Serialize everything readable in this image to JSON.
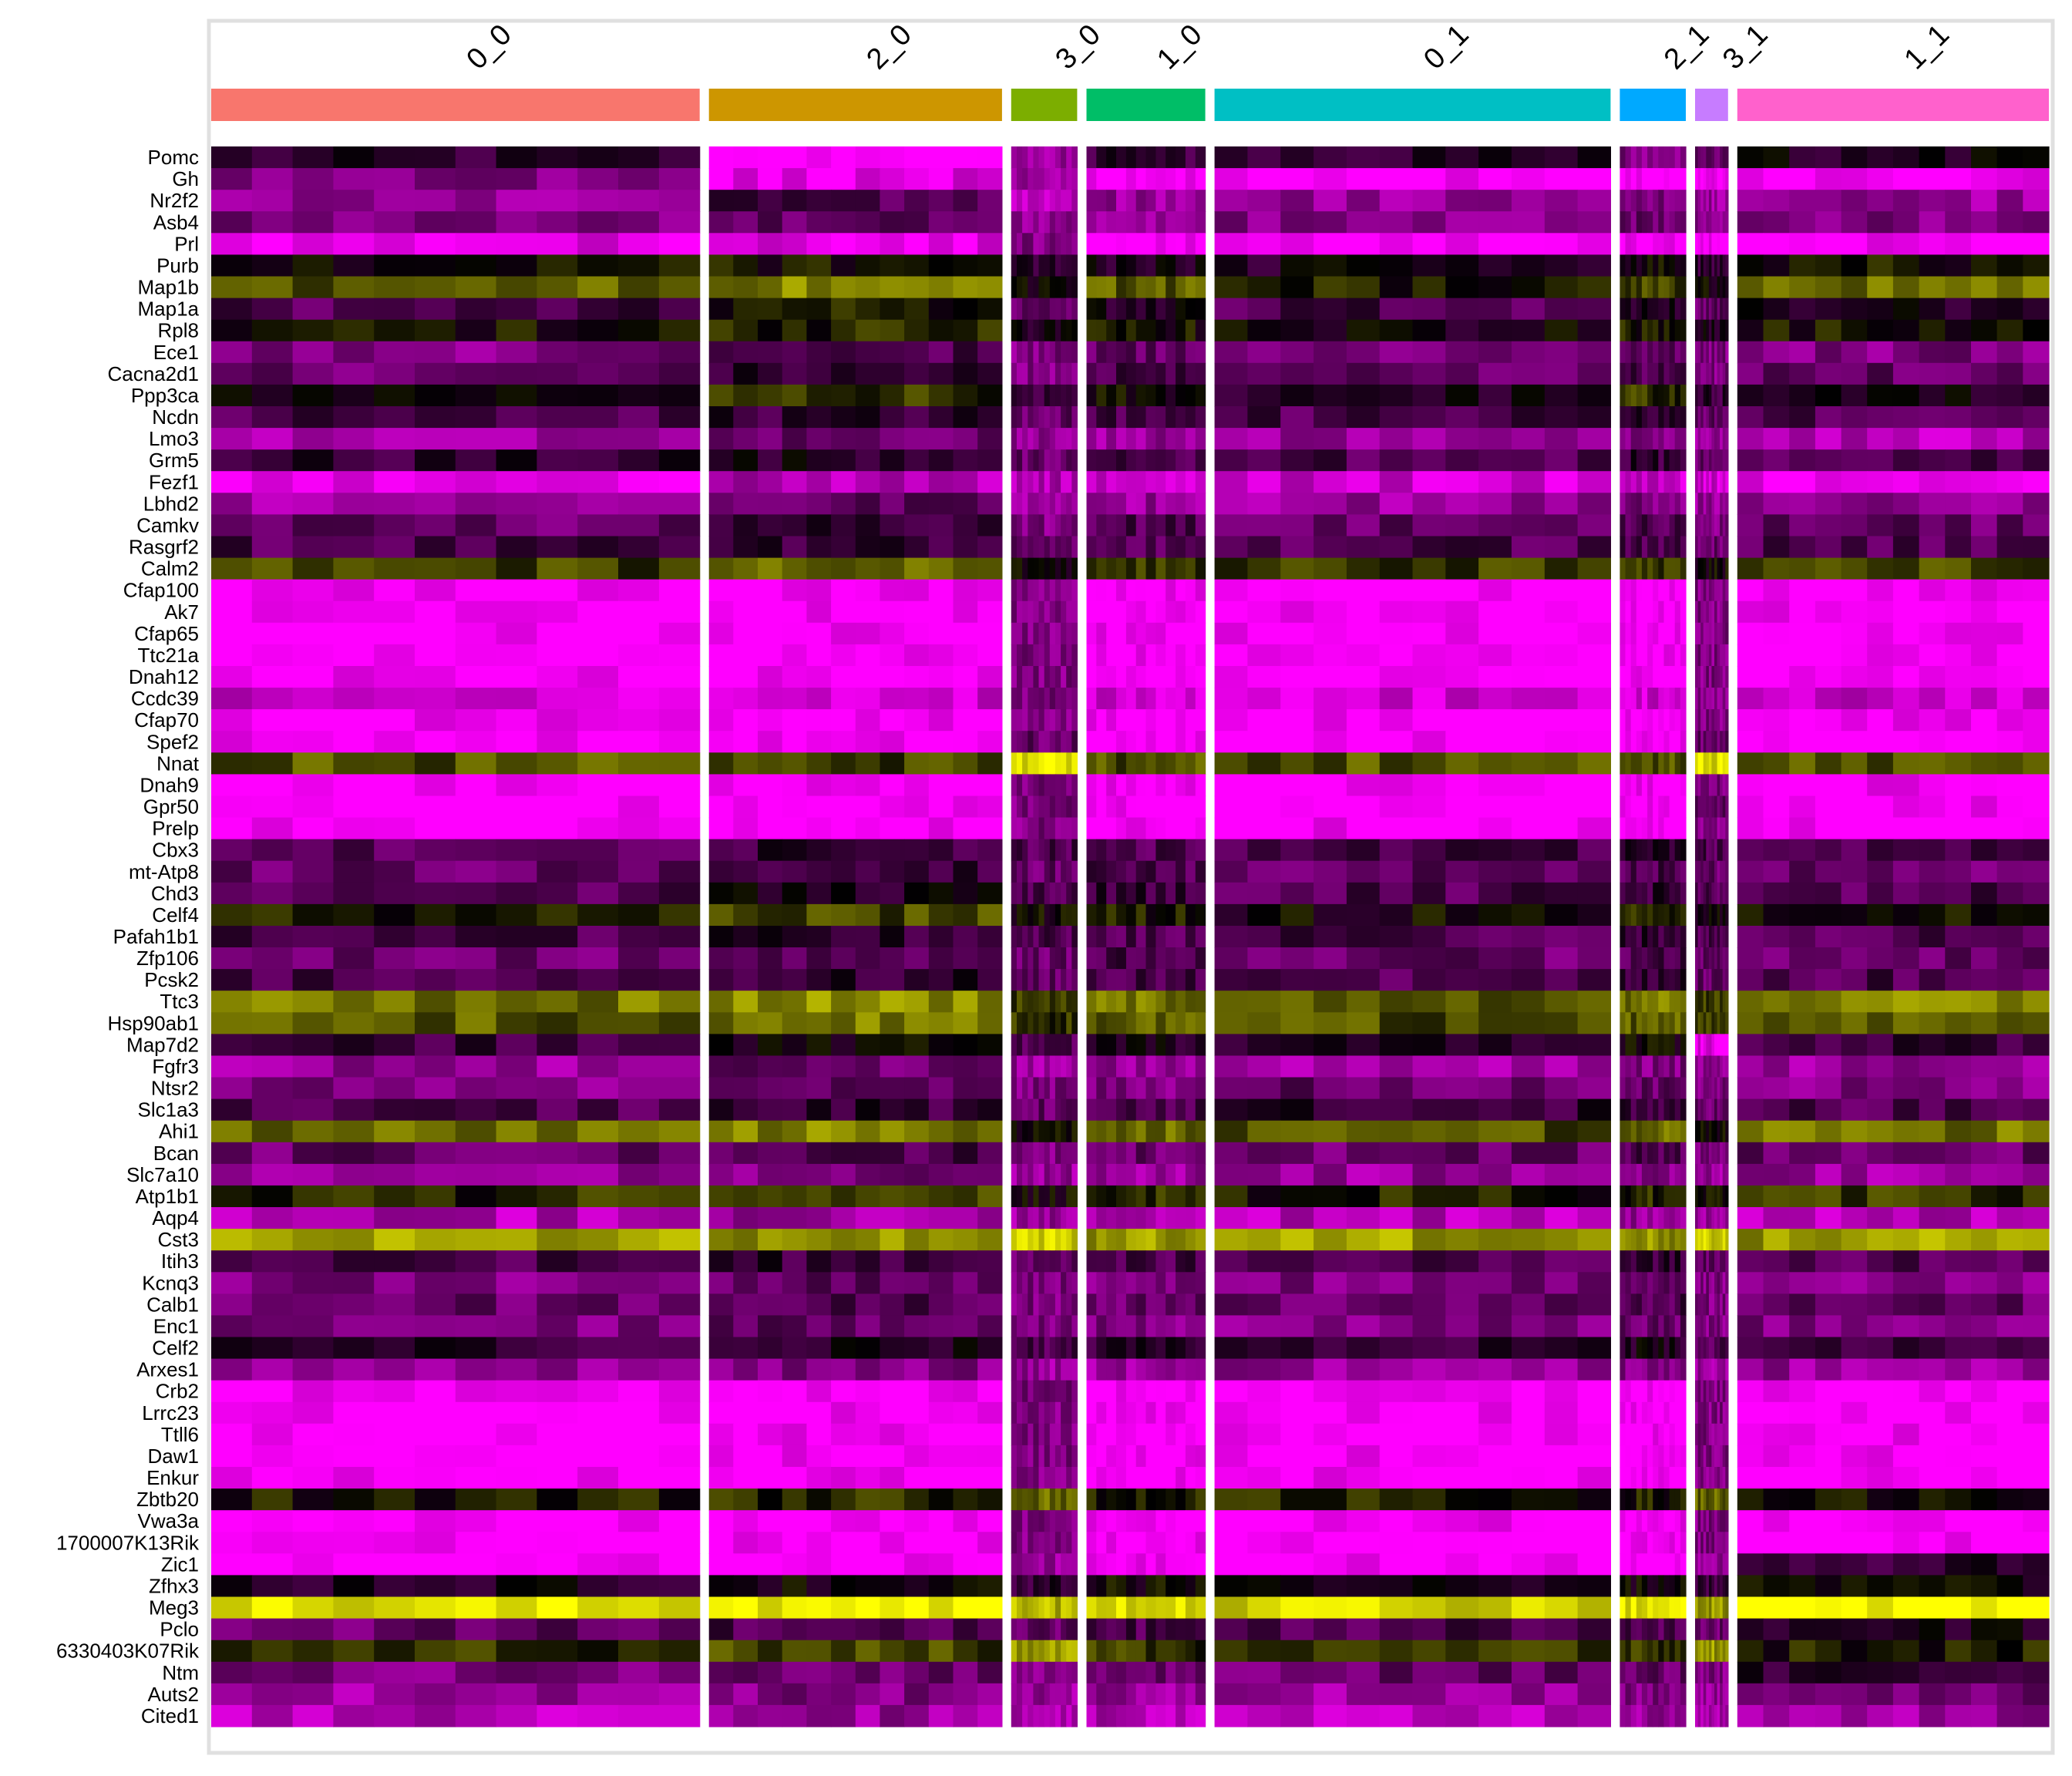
{
  "chart_data": {
    "type": "heatmap",
    "title": "",
    "xlabel": "",
    "ylabel": "",
    "color_scale": {
      "low": "#ff00ff",
      "mid": "#000000",
      "high": "#ffff00"
    },
    "clusters": [
      {
        "name": "0_0",
        "color": "#f8766d",
        "cells": 370
      },
      {
        "name": "2_0",
        "color": "#cd9600",
        "cells": 222
      },
      {
        "name": "3_0",
        "color": "#7cae00",
        "cells": 50
      },
      {
        "name": "1_0",
        "color": "#00be67",
        "cells": 90
      },
      {
        "name": "0_1",
        "color": "#00bfc4",
        "cells": 300
      },
      {
        "name": "2_1",
        "color": "#00a9ff",
        "cells": 50
      },
      {
        "name": "3_1",
        "color": "#c77cff",
        "cells": 25
      },
      {
        "name": "1_1",
        "color": "#ff61cc",
        "cells": 236
      }
    ],
    "genes": [
      "Pomc",
      "Gh",
      "Nr2f2",
      "Asb4",
      "Prl",
      "Purb",
      "Map1b",
      "Map1a",
      "Rpl8",
      "Ece1",
      "Cacna2d1",
      "Ppp3ca",
      "Ncdn",
      "Lmo3",
      "Grm5",
      "Fezf1",
      "Lbhd2",
      "Camkv",
      "Rasgrf2",
      "Calm2",
      "Cfap100",
      "Ak7",
      "Cfap65",
      "Ttc21a",
      "Dnah12",
      "Ccdc39",
      "Cfap70",
      "Spef2",
      "Nnat",
      "Dnah9",
      "Gpr50",
      "Prelp",
      "Cbx3",
      "mt-Atp8",
      "Chd3",
      "Celf4",
      "Pafah1b1",
      "Zfp106",
      "Pcsk2",
      "Ttc3",
      "Hsp90ab1",
      "Map7d2",
      "Fgfr3",
      "Ntsr2",
      "Slc1a3",
      "Ahi1",
      "Bcan",
      "Slc7a10",
      "Atp1b1",
      "Aqp4",
      "Cst3",
      "Itih3",
      "Kcnq3",
      "Calb1",
      "Enc1",
      "Celf2",
      "Arxes1",
      "Crb2",
      "Lrrc23",
      "Ttll6",
      "Daw1",
      "Enkur",
      "Zbtb20",
      "Vwa3a",
      "1700007K13Rik",
      "Zic1",
      "Zfhx3",
      "Meg3",
      "Pclo",
      "6330403K07Rik",
      "Ntm",
      "Auts2",
      "Cited1"
    ],
    "mean_expression": [
      [
        -0.2,
        -1.0,
        -0.6,
        -0.2,
        -0.2,
        -0.5,
        -0.4,
        -0.1
      ],
      [
        -0.5,
        -0.9,
        -0.6,
        -1.0,
        -1.0,
        -1.0,
        -1.0,
        -1.0
      ],
      [
        -0.6,
        -0.3,
        -0.7,
        -0.6,
        -0.6,
        -0.5,
        -0.6,
        -0.6
      ],
      [
        -0.5,
        -0.4,
        -0.6,
        -0.6,
        -0.5,
        -0.4,
        -0.5,
        -0.5
      ],
      [
        -0.9,
        -0.9,
        -0.5,
        -1.0,
        -1.0,
        -1.0,
        -1.0,
        -1.0
      ],
      [
        0.05,
        0.05,
        -0.2,
        -0.1,
        -0.1,
        0.0,
        -0.2,
        0.05
      ],
      [
        0.35,
        0.5,
        0.0,
        0.35,
        0.1,
        0.25,
        0.0,
        0.4
      ],
      [
        -0.3,
        0.1,
        -0.4,
        -0.1,
        -0.3,
        -0.1,
        -0.4,
        -0.1
      ],
      [
        0.05,
        0.15,
        -0.1,
        0.05,
        -0.05,
        0.1,
        -0.1,
        0.05
      ],
      [
        -0.5,
        -0.3,
        -0.5,
        -0.4,
        -0.5,
        -0.4,
        -0.5,
        -0.5
      ],
      [
        -0.4,
        -0.2,
        -0.5,
        -0.3,
        -0.4,
        -0.3,
        -0.5,
        -0.4
      ],
      [
        0.0,
        0.2,
        -0.2,
        0.0,
        -0.1,
        0.2,
        -0.2,
        -0.1
      ],
      [
        -0.3,
        -0.2,
        -0.4,
        -0.3,
        -0.3,
        -0.2,
        -0.4,
        -0.3
      ],
      [
        -0.6,
        -0.4,
        -0.6,
        -0.6,
        -0.6,
        -0.5,
        -0.6,
        -0.7
      ],
      [
        -0.2,
        -0.1,
        -0.4,
        -0.3,
        -0.3,
        -0.2,
        -0.4,
        -0.3
      ],
      [
        -0.9,
        -0.7,
        -0.7,
        -0.8,
        -0.8,
        -0.8,
        -0.8,
        -0.9
      ],
      [
        -0.6,
        -0.4,
        -0.6,
        -0.6,
        -0.6,
        -0.5,
        -0.6,
        -0.6
      ],
      [
        -0.4,
        -0.2,
        -0.5,
        -0.3,
        -0.4,
        -0.3,
        -0.5,
        -0.4
      ],
      [
        -0.3,
        -0.2,
        -0.4,
        -0.3,
        -0.3,
        -0.3,
        -0.4,
        -0.3
      ],
      [
        0.25,
        0.35,
        0.0,
        0.25,
        0.2,
        0.25,
        0.0,
        0.25
      ],
      [
        -1.0,
        -1.0,
        -0.5,
        -1.0,
        -1.0,
        -1.0,
        -0.5,
        -1.0
      ],
      [
        -1.0,
        -1.0,
        -0.5,
        -1.0,
        -1.0,
        -1.0,
        -0.5,
        -1.0
      ],
      [
        -1.0,
        -1.0,
        -0.5,
        -1.0,
        -1.0,
        -1.0,
        -0.5,
        -1.0
      ],
      [
        -1.0,
        -1.0,
        -0.5,
        -1.0,
        -1.0,
        -1.0,
        -0.5,
        -1.0
      ],
      [
        -1.0,
        -1.0,
        -0.5,
        -1.0,
        -1.0,
        -1.0,
        -0.5,
        -1.0
      ],
      [
        -0.8,
        -0.8,
        -0.5,
        -0.8,
        -0.8,
        -0.8,
        -0.5,
        -0.8
      ],
      [
        -1.0,
        -1.0,
        -0.5,
        -1.0,
        -1.0,
        -1.0,
        -0.5,
        -1.0
      ],
      [
        -1.0,
        -1.0,
        -0.4,
        -1.0,
        -1.0,
        -1.0,
        -0.4,
        -1.0
      ],
      [
        0.3,
        0.25,
        0.9,
        0.3,
        0.3,
        0.3,
        0.85,
        0.3
      ],
      [
        -1.0,
        -1.0,
        -0.5,
        -1.0,
        -1.0,
        -1.0,
        -0.5,
        -1.0
      ],
      [
        -1.0,
        -1.0,
        -0.5,
        -1.0,
        -1.0,
        -1.0,
        -0.4,
        -1.0
      ],
      [
        -1.0,
        -1.0,
        -0.5,
        -1.0,
        -1.0,
        -1.0,
        -0.5,
        -1.0
      ],
      [
        -0.3,
        -0.2,
        -0.3,
        -0.3,
        -0.3,
        -0.2,
        -0.3,
        -0.3
      ],
      [
        -0.4,
        -0.2,
        -0.4,
        -0.3,
        -0.4,
        -0.3,
        -0.4,
        -0.4
      ],
      [
        -0.3,
        -0.1,
        -0.3,
        -0.2,
        -0.3,
        -0.2,
        -0.3,
        -0.3
      ],
      [
        0.1,
        0.25,
        0.0,
        0.1,
        0.0,
        0.2,
        0.0,
        0.1
      ],
      [
        -0.3,
        -0.2,
        -0.3,
        -0.3,
        -0.3,
        -0.2,
        -0.3,
        -0.3
      ],
      [
        -0.4,
        -0.3,
        -0.4,
        -0.3,
        -0.4,
        -0.3,
        -0.4,
        -0.4
      ],
      [
        -0.3,
        -0.2,
        -0.4,
        -0.3,
        -0.3,
        -0.2,
        -0.4,
        -0.3
      ],
      [
        0.45,
        0.55,
        0.2,
        0.45,
        0.35,
        0.45,
        0.2,
        0.5
      ],
      [
        0.35,
        0.45,
        0.2,
        0.35,
        0.3,
        0.35,
        0.2,
        0.4
      ],
      [
        -0.2,
        0.0,
        -0.3,
        -0.1,
        -0.2,
        0.0,
        -0.9,
        -0.2
      ],
      [
        -0.6,
        -0.4,
        -0.6,
        -0.6,
        -0.6,
        -0.5,
        -0.6,
        -0.6
      ],
      [
        -0.5,
        -0.4,
        -0.5,
        -0.5,
        -0.4,
        -0.4,
        -0.5,
        -0.5
      ],
      [
        -0.3,
        -0.2,
        -0.4,
        -0.3,
        -0.2,
        -0.2,
        -0.4,
        -0.3
      ],
      [
        0.4,
        0.5,
        0.0,
        0.4,
        0.3,
        0.4,
        0.0,
        0.45
      ],
      [
        -0.4,
        -0.3,
        -0.5,
        -0.4,
        -0.4,
        -0.3,
        -0.5,
        -0.4
      ],
      [
        -0.6,
        -0.5,
        -0.6,
        -0.6,
        -0.6,
        -0.5,
        -0.6,
        -0.6
      ],
      [
        0.15,
        0.25,
        0.0,
        0.15,
        0.1,
        0.15,
        0.0,
        0.2
      ],
      [
        -0.7,
        -0.6,
        -0.6,
        -0.7,
        -0.7,
        -0.6,
        -0.6,
        -0.7
      ],
      [
        0.6,
        0.55,
        0.8,
        0.6,
        0.6,
        0.55,
        0.8,
        0.6
      ],
      [
        -0.3,
        -0.2,
        -0.4,
        -0.3,
        -0.3,
        -0.2,
        -0.4,
        -0.3
      ],
      [
        -0.5,
        -0.4,
        -0.5,
        -0.5,
        -0.5,
        -0.4,
        -0.5,
        -0.5
      ],
      [
        -0.4,
        -0.3,
        -0.5,
        -0.4,
        -0.4,
        -0.3,
        -0.5,
        -0.4
      ],
      [
        -0.5,
        -0.4,
        -0.5,
        -0.5,
        -0.5,
        -0.4,
        -0.5,
        -0.5
      ],
      [
        -0.2,
        -0.1,
        -0.3,
        -0.2,
        -0.2,
        -0.1,
        -0.3,
        -0.2
      ],
      [
        -0.6,
        -0.5,
        -0.6,
        -0.6,
        -0.6,
        -0.5,
        -0.6,
        -0.6
      ],
      [
        -1.0,
        -1.0,
        -0.5,
        -1.0,
        -1.0,
        -1.0,
        -0.5,
        -1.0
      ],
      [
        -1.0,
        -1.0,
        -0.5,
        -1.0,
        -1.0,
        -1.0,
        -0.5,
        -1.0
      ],
      [
        -1.0,
        -1.0,
        -0.5,
        -1.0,
        -1.0,
        -1.0,
        -0.5,
        -1.0
      ],
      [
        -1.0,
        -1.0,
        -0.5,
        -1.0,
        -1.0,
        -1.0,
        -0.5,
        -1.0
      ],
      [
        -1.0,
        -1.0,
        -0.5,
        -1.0,
        -1.0,
        -1.0,
        -0.5,
        -1.0
      ],
      [
        0.1,
        0.15,
        0.4,
        0.1,
        0.1,
        0.1,
        0.4,
        0.05
      ],
      [
        -1.0,
        -1.0,
        -0.5,
        -1.0,
        -1.0,
        -1.0,
        -0.5,
        -1.0
      ],
      [
        -1.0,
        -1.0,
        -0.5,
        -1.0,
        -1.0,
        -1.0,
        -0.5,
        -1.0
      ],
      [
        -1.0,
        -1.0,
        -0.6,
        -1.0,
        -1.0,
        -1.0,
        -0.6,
        -0.2
      ],
      [
        -0.1,
        0.0,
        -0.2,
        0.0,
        0.0,
        0.0,
        -0.2,
        0.0
      ],
      [
        0.85,
        0.9,
        0.7,
        0.9,
        0.85,
        0.9,
        0.6,
        1.0
      ],
      [
        -0.4,
        -0.3,
        -0.4,
        -0.3,
        -0.3,
        -0.3,
        -0.4,
        -0.1
      ],
      [
        0.2,
        0.25,
        0.6,
        0.2,
        0.2,
        0.2,
        0.6,
        0.1
      ],
      [
        -0.5,
        -0.4,
        -0.5,
        -0.4,
        -0.4,
        -0.4,
        -0.5,
        -0.2
      ],
      [
        -0.6,
        -0.5,
        -0.6,
        -0.6,
        -0.6,
        -0.5,
        -0.6,
        -0.4
      ],
      [
        -0.7,
        -0.6,
        -0.7,
        -0.7,
        -0.7,
        -0.6,
        -0.7,
        -0.6
      ]
    ]
  }
}
